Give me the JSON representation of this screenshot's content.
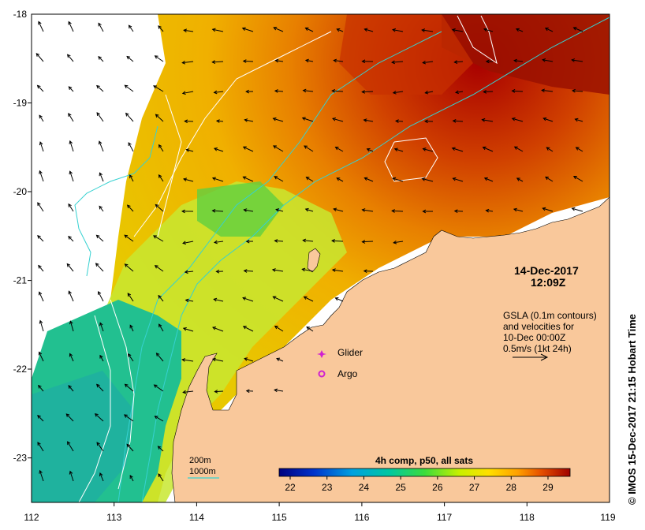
{
  "map": {
    "x_axis": {
      "min": 112,
      "max": 119,
      "ticks": [
        "112",
        "113",
        "114",
        "115",
        "116",
        "117",
        "118",
        "119"
      ]
    },
    "y_axis": {
      "min": -23.5,
      "max": -18,
      "ticks": [
        "-18",
        "-19",
        "-20",
        "-21",
        "-22",
        "-23"
      ]
    },
    "date_label": "14-Dec-2017",
    "time_label": "12:09Z",
    "gsla_note": [
      "GSLA (0.1m contours)",
      "and velocities for",
      "10-Dec 00:00Z",
      "0.5m/s (1kt 24h)"
    ],
    "legend": {
      "glider": "Glider",
      "argo": "Argo"
    },
    "depth_legend": {
      "depth_200": "200m",
      "depth_1000": "1000m"
    },
    "colorbar": {
      "title": "4h comp, p50, all sats",
      "ticks": [
        "22",
        "23",
        "24",
        "25",
        "26",
        "27",
        "28",
        "29"
      ],
      "min": 21.7,
      "max": 29.6
    },
    "credit": "© IMOS 15-Dec-2017 21:15 Hobart Time",
    "colors": {
      "land": "#f9c89b",
      "cold": "#0b0b8a",
      "mid": "#2ad07a",
      "warm": "#ffd700",
      "hot": "#8b0000",
      "contour_200": "#36d1d1",
      "contour_1000": "#36d1d1",
      "gsla": "#ffffff"
    }
  }
}
